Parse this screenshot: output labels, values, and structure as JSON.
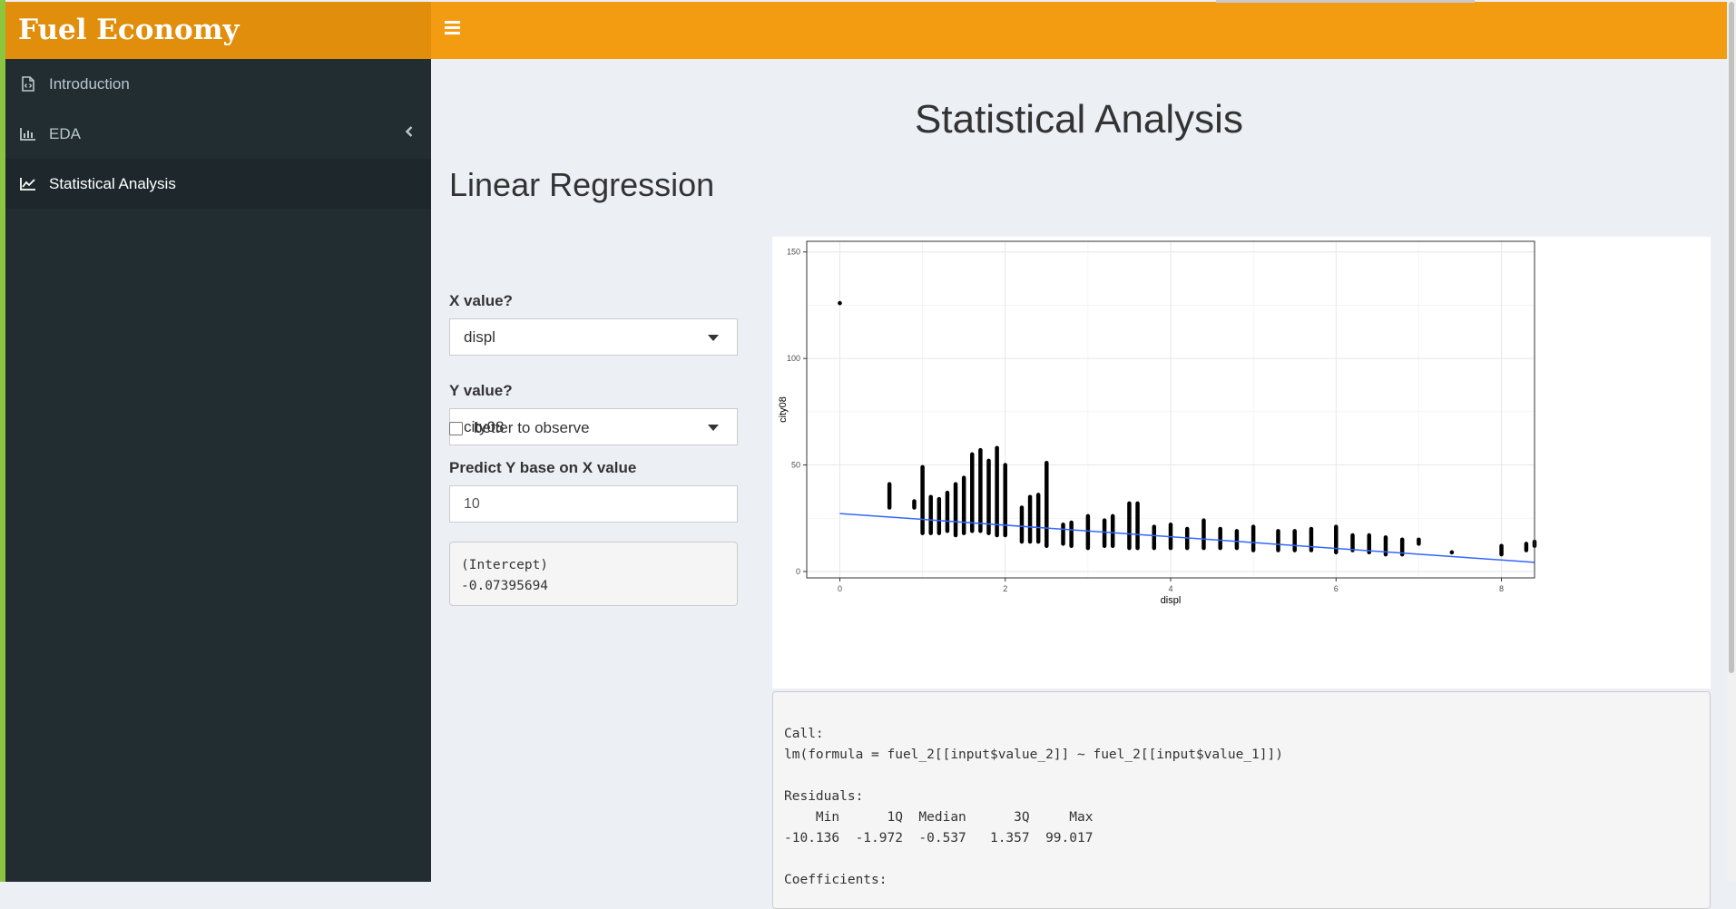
{
  "app": {
    "title": "Fuel Economy"
  },
  "sidebar": {
    "items": [
      {
        "label": "Introduction",
        "icon": "file-code-icon"
      },
      {
        "label": "EDA",
        "icon": "bar-chart-icon"
      },
      {
        "label": "Statistical Analysis",
        "icon": "line-chart-icon"
      }
    ]
  },
  "page": {
    "title": "Statistical Analysis",
    "section": "Linear Regression"
  },
  "controls": {
    "x_label": "X value?",
    "x_value": "displ",
    "y_label": "Y value?",
    "y_value": "city08",
    "checkbox_label": "better to observe",
    "predict_label": "Predict Y base on X value",
    "predict_value": "10",
    "prediction_output": "(Intercept)\n-0.07395694"
  },
  "chart_data": {
    "type": "scatter",
    "xlabel": "displ",
    "ylabel": "city08",
    "xlim": [
      -0.4,
      8.4
    ],
    "ylim": [
      -3,
      155
    ],
    "x_ticks": [
      0,
      2,
      4,
      6,
      8
    ],
    "y_ticks": [
      0,
      50,
      100,
      150
    ],
    "grid": true,
    "columns": [
      {
        "x": 0,
        "ymin": 126,
        "ymax": 126
      },
      {
        "x": 0.6,
        "ymin": 30,
        "ymax": 41
      },
      {
        "x": 0.9,
        "ymin": 30,
        "ymax": 33
      },
      {
        "x": 1.0,
        "ymin": 18,
        "ymax": 49
      },
      {
        "x": 1.1,
        "ymin": 18,
        "ymax": 35
      },
      {
        "x": 1.2,
        "ymin": 18,
        "ymax": 34
      },
      {
        "x": 1.3,
        "ymin": 19,
        "ymax": 37
      },
      {
        "x": 1.4,
        "ymin": 17,
        "ymax": 41
      },
      {
        "x": 1.5,
        "ymin": 18,
        "ymax": 44
      },
      {
        "x": 1.6,
        "ymin": 19,
        "ymax": 55
      },
      {
        "x": 1.7,
        "ymin": 19,
        "ymax": 57
      },
      {
        "x": 1.8,
        "ymin": 18,
        "ymax": 52
      },
      {
        "x": 1.9,
        "ymin": 17,
        "ymax": 58
      },
      {
        "x": 2.0,
        "ymin": 17,
        "ymax": 50
      },
      {
        "x": 2.2,
        "ymin": 14,
        "ymax": 30
      },
      {
        "x": 2.3,
        "ymin": 14,
        "ymax": 35
      },
      {
        "x": 2.4,
        "ymin": 14,
        "ymax": 36
      },
      {
        "x": 2.5,
        "ymin": 12,
        "ymax": 51
      },
      {
        "x": 2.7,
        "ymin": 13,
        "ymax": 22
      },
      {
        "x": 2.8,
        "ymin": 12,
        "ymax": 23
      },
      {
        "x": 3.0,
        "ymin": 11,
        "ymax": 26
      },
      {
        "x": 3.2,
        "ymin": 12,
        "ymax": 24
      },
      {
        "x": 3.3,
        "ymin": 12,
        "ymax": 26
      },
      {
        "x": 3.5,
        "ymin": 11,
        "ymax": 32
      },
      {
        "x": 3.6,
        "ymin": 11,
        "ymax": 32
      },
      {
        "x": 3.8,
        "ymin": 11,
        "ymax": 21
      },
      {
        "x": 4.0,
        "ymin": 11,
        "ymax": 22
      },
      {
        "x": 4.2,
        "ymin": 11,
        "ymax": 20
      },
      {
        "x": 4.4,
        "ymin": 11,
        "ymax": 24
      },
      {
        "x": 4.6,
        "ymin": 11,
        "ymax": 20
      },
      {
        "x": 4.8,
        "ymin": 11,
        "ymax": 19
      },
      {
        "x": 5.0,
        "ymin": 10,
        "ymax": 21
      },
      {
        "x": 5.3,
        "ymin": 10,
        "ymax": 19
      },
      {
        "x": 5.5,
        "ymin": 10,
        "ymax": 19
      },
      {
        "x": 5.7,
        "ymin": 10,
        "ymax": 20
      },
      {
        "x": 6.0,
        "ymin": 9,
        "ymax": 21
      },
      {
        "x": 6.2,
        "ymin": 10,
        "ymax": 17
      },
      {
        "x": 6.4,
        "ymin": 9,
        "ymax": 17
      },
      {
        "x": 6.6,
        "ymin": 8,
        "ymax": 16
      },
      {
        "x": 6.8,
        "ymin": 8,
        "ymax": 15
      },
      {
        "x": 7.0,
        "ymin": 13,
        "ymax": 15
      },
      {
        "x": 7.4,
        "ymin": 9,
        "ymax": 9
      },
      {
        "x": 8.0,
        "ymin": 8,
        "ymax": 12
      },
      {
        "x": 8.3,
        "ymin": 10,
        "ymax": 13
      },
      {
        "x": 8.4,
        "ymin": 12,
        "ymax": 14
      }
    ],
    "regression_line": {
      "x": [
        0,
        8.4
      ],
      "y": [
        27.2,
        4.3
      ],
      "color": "#3366ff"
    },
    "point_color": "#000000"
  },
  "summary": {
    "text": "\nCall:\nlm(formula = fuel_2[[input$value_2]] ~ fuel_2[[input$value_1]])\n\nResiduals:\n    Min      1Q  Median      3Q     Max \n-10.136  -1.972  -0.537   1.357  99.017 \n\nCoefficients:"
  },
  "colors": {
    "topbar": "#f39c12",
    "brand": "#e08e0b",
    "sidebar": "#222d32",
    "accent": "#8cc63f",
    "regression": "#3366ff"
  }
}
